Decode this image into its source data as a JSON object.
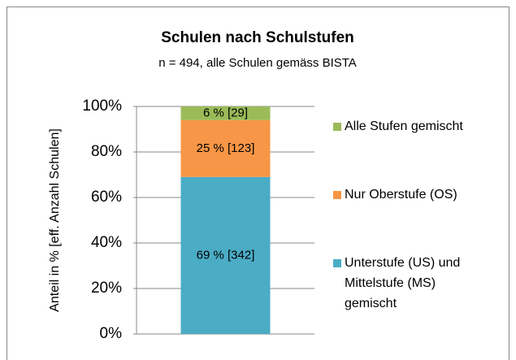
{
  "chart_data": {
    "type": "stacked_bar",
    "title": "Schulen nach Schulstufen",
    "subtitle": "n = 494, alle Schulen gemäss BISTA",
    "y_label": "Anteil in % [eff. Anzahl Schulen]",
    "categories": [
      null
    ],
    "series": [
      {
        "name": "Unterstufe (US) und Mittelstufe (MS) gemischt",
        "color": "#4bacc6",
        "values": [
          69
        ],
        "value_labels": [
          "69 % [342]"
        ]
      },
      {
        "name": "Nur Oberstufe (OS)",
        "color": "#f79646",
        "values": [
          25
        ],
        "value_labels": [
          "25 % [123]"
        ]
      },
      {
        "name": "Alle Stufen gemischt",
        "color": "#9bbb59",
        "values": [
          6
        ],
        "value_labels": [
          "6 % [29]"
        ]
      }
    ],
    "ylim": [
      0,
      100
    ],
    "yticks": [
      {
        "value": 0,
        "label": "0%"
      },
      {
        "value": 20,
        "label": "20%"
      },
      {
        "value": 40,
        "label": "40%"
      },
      {
        "value": 60,
        "label": "60%"
      },
      {
        "value": 80,
        "label": "80%"
      },
      {
        "value": 100,
        "label": "100%"
      }
    ],
    "grid": true,
    "legend": "right"
  }
}
